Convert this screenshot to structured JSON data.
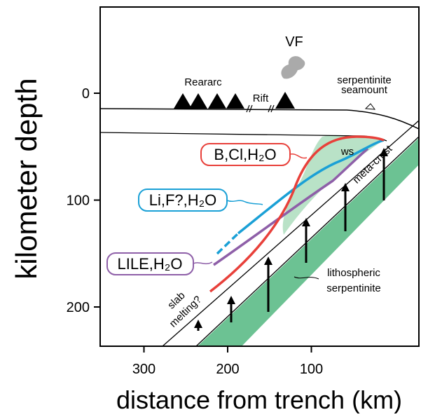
{
  "axes": {
    "x_label": "distance from trench (km)",
    "y_label": "kilometer depth",
    "xticks": [
      300,
      200,
      100
    ],
    "yticks": [
      0,
      100,
      200
    ]
  },
  "labels": {
    "rearc": "Reararc",
    "rift": "Rift",
    "vf": "VF",
    "seamount": [
      "serpentinite",
      "seamount"
    ],
    "ws": "ws",
    "meta_crust": "meta-crust",
    "slab_melting": [
      "slab",
      "melting?"
    ],
    "lith_serp": [
      "lithospheric",
      "serpentinite"
    ]
  },
  "fluids": [
    "B,Cl,H₂O",
    "Li,F?,H₂O",
    "LILE,H₂O"
  ]
}
